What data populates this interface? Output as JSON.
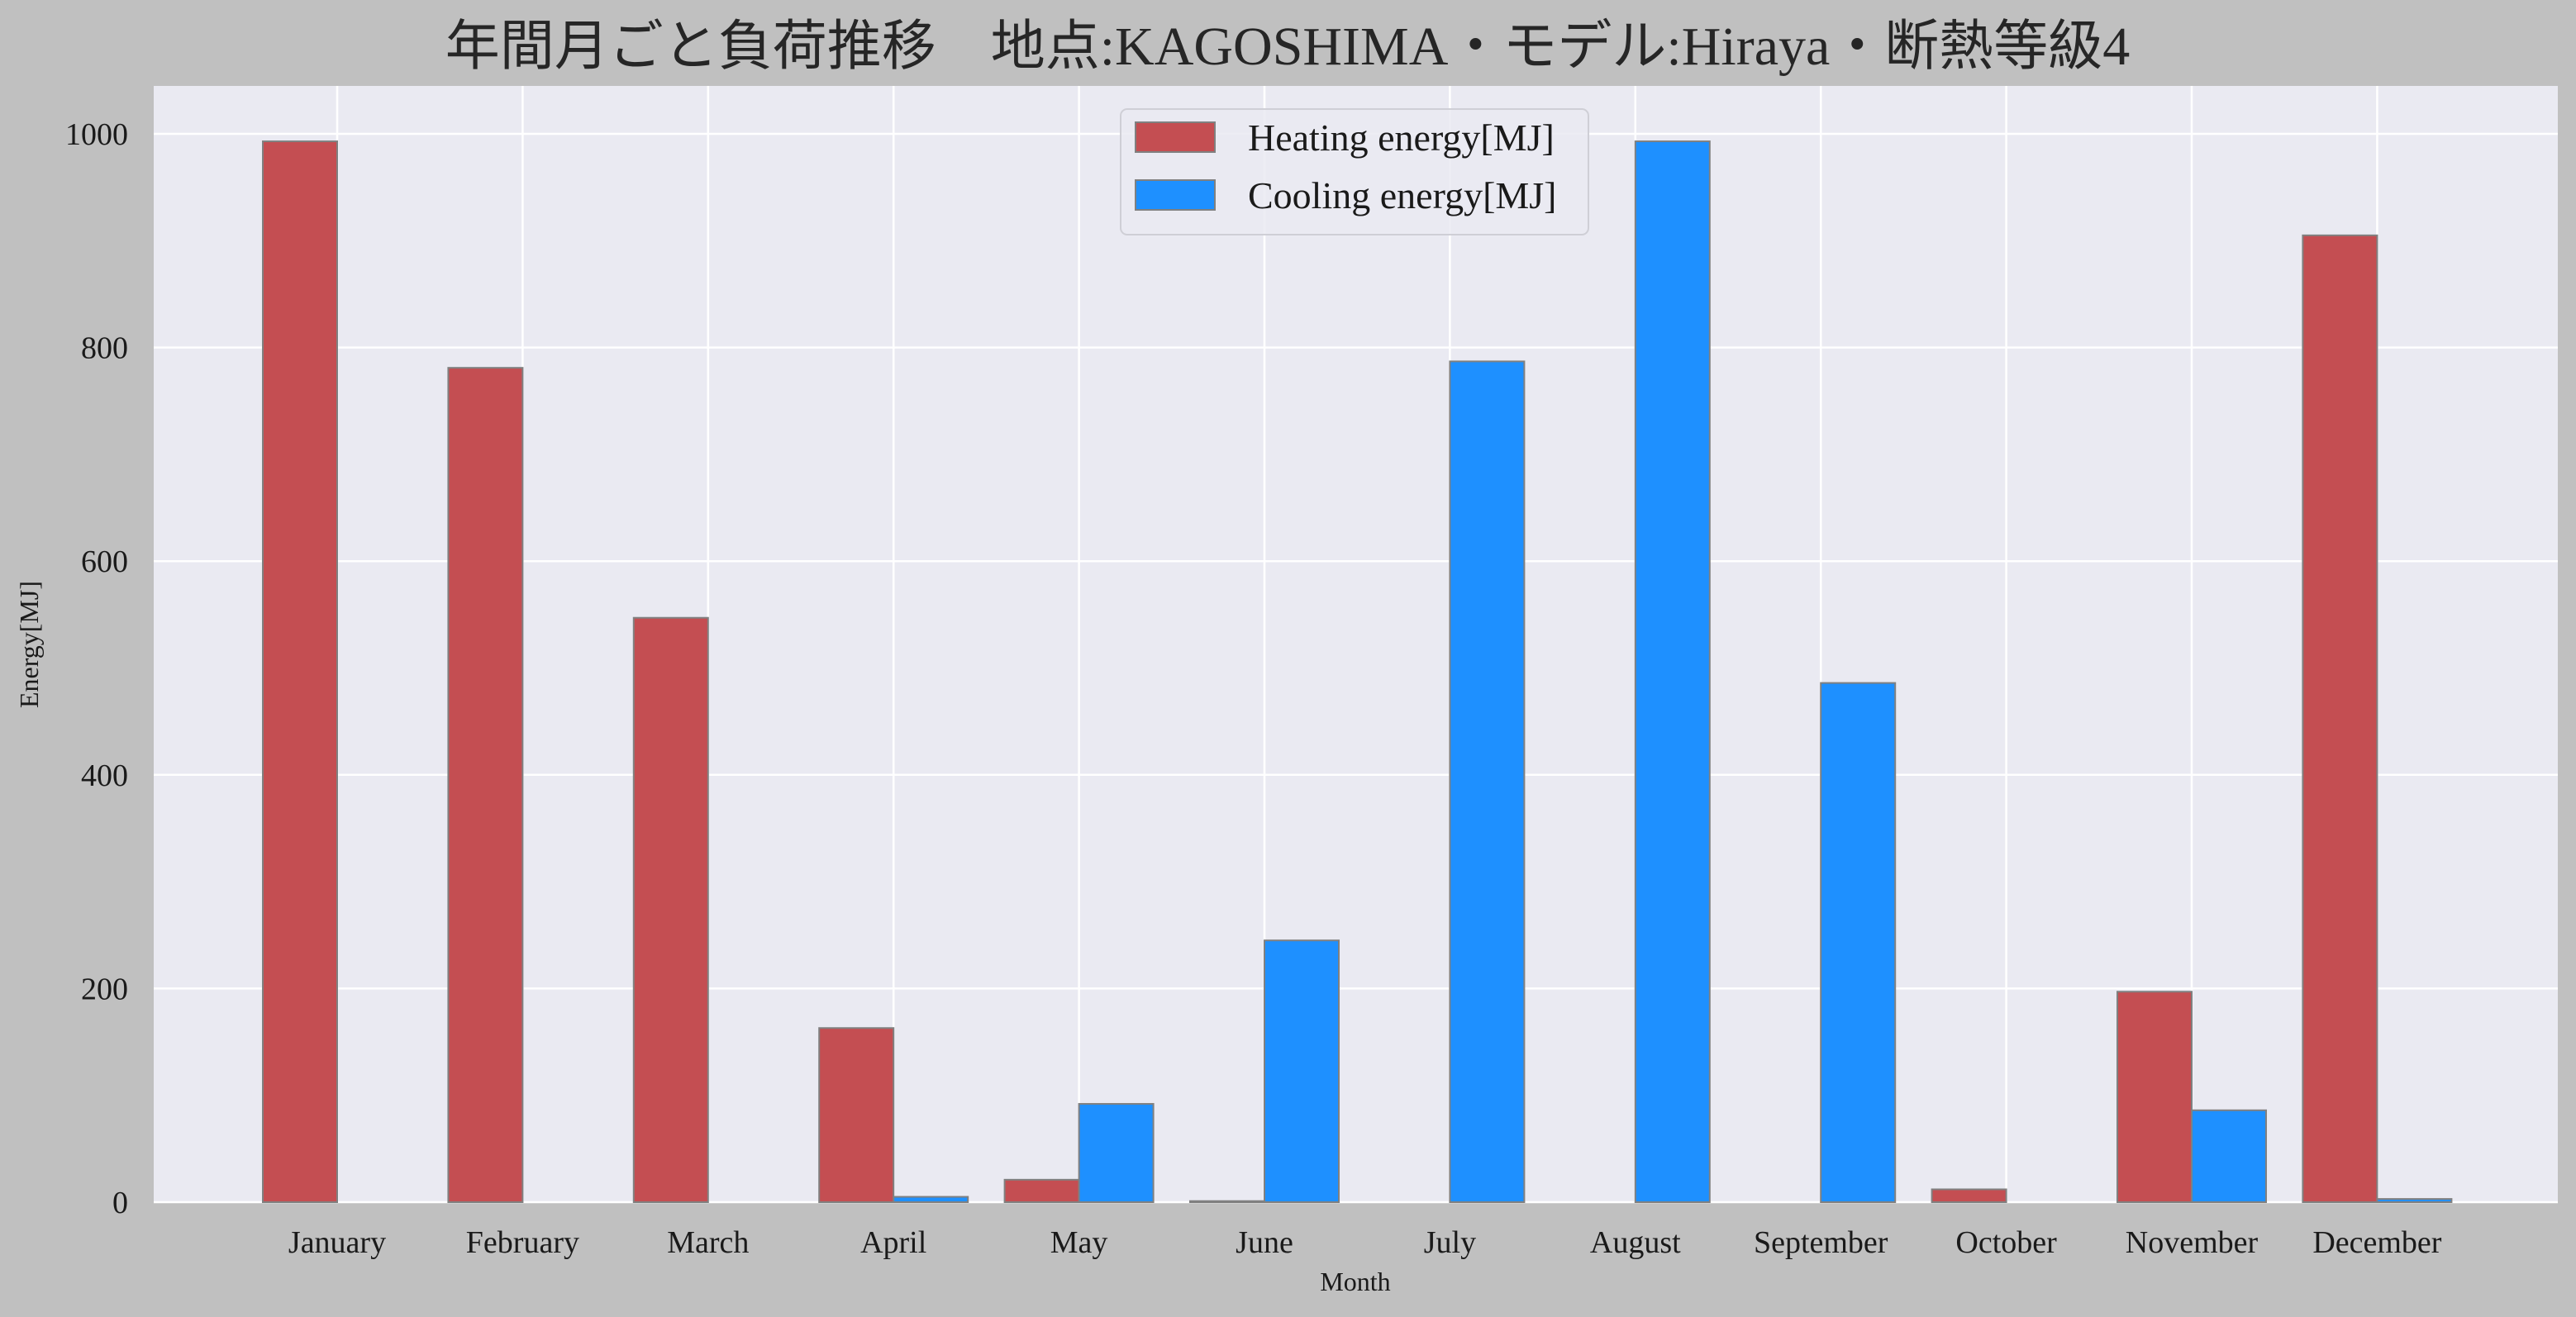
{
  "chart_data": {
    "type": "bar",
    "title": "年間月ごと負荷推移　地点:KAGOSHIMA・モデル:Hiraya・断熱等級4",
    "xlabel": "Month",
    "ylabel": "Energy[MJ]",
    "ylim": [
      0,
      1000
    ],
    "yticks": [
      0,
      200,
      400,
      600,
      800,
      1000
    ],
    "grid": true,
    "legend_position": "top-center",
    "categories": [
      "January",
      "February",
      "March",
      "April",
      "May",
      "June",
      "July",
      "August",
      "September",
      "October",
      "November",
      "December"
    ],
    "series": [
      {
        "name": "Heating energy[MJ]",
        "color": "#c44e52",
        "values": [
          993,
          781,
          547,
          163,
          21,
          1,
          0,
          0,
          0,
          12,
          197,
          905
        ]
      },
      {
        "name": "Cooling energy[MJ]",
        "color": "#1e90ff",
        "values": [
          0,
          0,
          0,
          5,
          92,
          245,
          787,
          993,
          486,
          0,
          86,
          3
        ]
      }
    ]
  },
  "colors": {
    "page_background": "#c0c0c0",
    "plot_background": "#eaeaf2",
    "grid": "#ffffff",
    "bar_edge": "#808080"
  }
}
